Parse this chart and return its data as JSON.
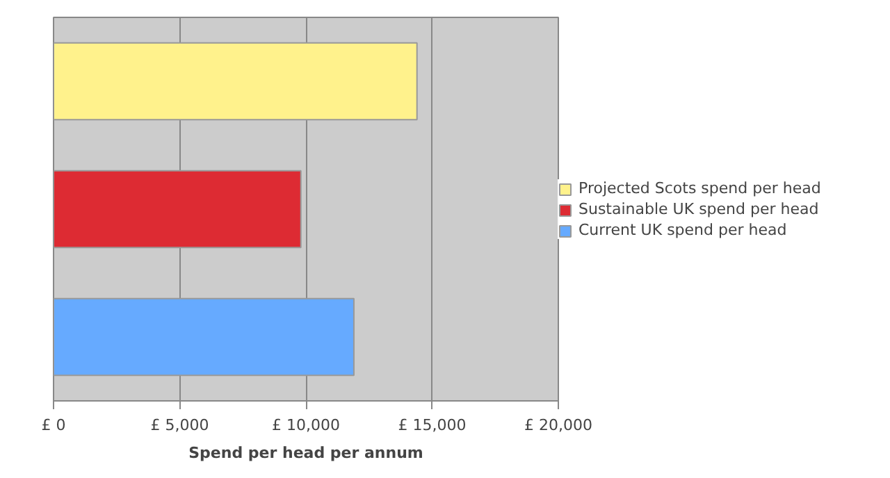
{
  "chart_data": {
    "type": "bar",
    "orientation": "horizontal",
    "xlabel": "Spend per head per annum",
    "categories": [
      null,
      null,
      null
    ],
    "series": [
      {
        "name": "Projected Scots spend per head",
        "color": "#fff28c",
        "values": [
          14400,
          null,
          null
        ]
      },
      {
        "name": "Sustainable UK spend per head",
        "color": "#dd2b33",
        "values": [
          null,
          9800,
          null
        ]
      },
      {
        "name": "Current UK spend per head",
        "color": "#66aaff",
        "values": [
          null,
          null,
          11900
        ]
      }
    ],
    "xlim": [
      0,
      20000
    ],
    "xticks": [
      {
        "value": 0,
        "label": "£ 0"
      },
      {
        "value": 5000,
        "label": "£ 5,000"
      },
      {
        "value": 10000,
        "label": "£ 10,000"
      },
      {
        "value": 15000,
        "label": "£ 15,000"
      },
      {
        "value": 20000,
        "label": "£ 20,000"
      }
    ],
    "grid": "x",
    "legend": "right",
    "tick_labels": "x"
  }
}
